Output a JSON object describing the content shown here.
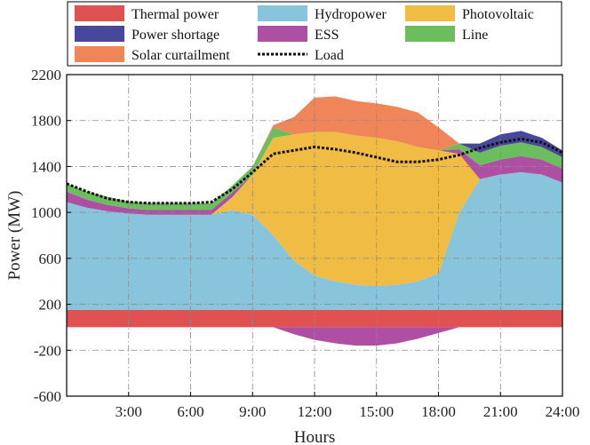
{
  "chart_data": {
    "type": "area",
    "title": "",
    "xlabel": "Hours",
    "ylabel": "Power (MW)",
    "xlim": [
      0,
      24
    ],
    "ylim": [
      -600,
      2200
    ],
    "grid": true,
    "legend_position": "top",
    "x_ticks": [
      3,
      6,
      9,
      12,
      15,
      18,
      21,
      24
    ],
    "x_tick_labels": [
      "3:00",
      "6:00",
      "9:00",
      "12:00",
      "15:00",
      "18:00",
      "21:00",
      "24:00"
    ],
    "y_ticks": [
      -600,
      -200,
      200,
      600,
      1000,
      1400,
      1800,
      2200
    ],
    "y_tick_labels": [
      "-600",
      "-200",
      "200",
      "600",
      "1000",
      "1400",
      "1800",
      "2200"
    ],
    "x": [
      0,
      1,
      2,
      3,
      4,
      5,
      6,
      7,
      8,
      9,
      10,
      11,
      12,
      13,
      14,
      15,
      16,
      17,
      18,
      19,
      20,
      21,
      22,
      23,
      24
    ],
    "series": [
      {
        "name": "Thermal power",
        "color": "#e05252",
        "stack": "positive",
        "values": [
          150,
          150,
          150,
          150,
          150,
          150,
          150,
          150,
          150,
          150,
          150,
          150,
          150,
          150,
          150,
          150,
          150,
          150,
          150,
          150,
          150,
          150,
          150,
          150,
          150
        ]
      },
      {
        "name": "Hydropower",
        "color": "#88c5dc",
        "stack": "positive",
        "values": [
          940,
          890,
          860,
          840,
          830,
          830,
          830,
          830,
          870,
          830,
          650,
          430,
          300,
          250,
          220,
          210,
          220,
          250,
          320,
          850,
          1140,
          1180,
          1200,
          1180,
          1110
        ]
      },
      {
        "name": "Photovoltaic",
        "color": "#f0bc43",
        "stack": "positive",
        "values": [
          0,
          0,
          0,
          0,
          0,
          0,
          0,
          0,
          110,
          350,
          850,
          1100,
          1250,
          1300,
          1300,
          1290,
          1250,
          1170,
          1070,
          510,
          0,
          0,
          0,
          0,
          0
        ]
      },
      {
        "name": "ESS",
        "color": "#ae4fa3",
        "stack": "positive",
        "values": [
          90,
          70,
          55,
          45,
          40,
          40,
          40,
          40,
          40,
          0,
          0,
          0,
          0,
          0,
          0,
          0,
          0,
          0,
          0,
          40,
          120,
          130,
          140,
          130,
          120
        ]
      },
      {
        "name": "Line",
        "color": "#6cbd5d",
        "stack": "positive",
        "values": [
          70,
          70,
          70,
          60,
          60,
          60,
          60,
          60,
          60,
          70,
          90,
          0,
          0,
          0,
          0,
          0,
          0,
          0,
          0,
          50,
          110,
          120,
          120,
          110,
          100
        ]
      },
      {
        "name": "Power shortage",
        "color": "#47479b",
        "stack": "positive",
        "values": [
          0,
          0,
          0,
          0,
          0,
          0,
          0,
          0,
          0,
          0,
          0,
          0,
          0,
          0,
          0,
          0,
          0,
          0,
          0,
          0,
          80,
          100,
          100,
          80,
          60
        ]
      },
      {
        "name": "Solar curtailment",
        "color": "#f0855a",
        "stack": "positive",
        "values": [
          0,
          0,
          0,
          0,
          0,
          0,
          0,
          0,
          0,
          0,
          20,
          150,
          300,
          310,
          300,
          300,
          300,
          300,
          200,
          0,
          0,
          0,
          0,
          0,
          0
        ]
      },
      {
        "name": "ESS",
        "color": "#ae4fa3",
        "stack": "negative",
        "legend": false,
        "values": [
          0,
          0,
          0,
          0,
          0,
          0,
          0,
          0,
          0,
          0,
          0,
          -60,
          -110,
          -140,
          -160,
          -160,
          -140,
          -100,
          -50,
          0,
          0,
          0,
          0,
          0,
          0
        ]
      },
      {
        "name": "Load",
        "color": "#111111",
        "type": "line",
        "dashed": true,
        "values": [
          1250,
          1180,
          1120,
          1090,
          1080,
          1080,
          1080,
          1090,
          1200,
          1350,
          1510,
          1540,
          1570,
          1550,
          1520,
          1480,
          1440,
          1440,
          1460,
          1500,
          1560,
          1610,
          1640,
          1610,
          1520
        ]
      }
    ],
    "legend": [
      {
        "label": "Thermal power",
        "color": "#e05252",
        "kind": "patch"
      },
      {
        "label": "Hydropower",
        "color": "#88c5dc",
        "kind": "patch"
      },
      {
        "label": "Photovoltaic",
        "color": "#f0bc43",
        "kind": "patch"
      },
      {
        "label": "Power shortage",
        "color": "#47479b",
        "kind": "patch"
      },
      {
        "label": "ESS",
        "color": "#ae4fa3",
        "kind": "patch"
      },
      {
        "label": "Line",
        "color": "#6cbd5d",
        "kind": "patch"
      },
      {
        "label": "Solar curtailment",
        "color": "#f0855a",
        "kind": "patch"
      },
      {
        "label": "Load",
        "color": "#111111",
        "kind": "dashed-line"
      }
    ]
  }
}
